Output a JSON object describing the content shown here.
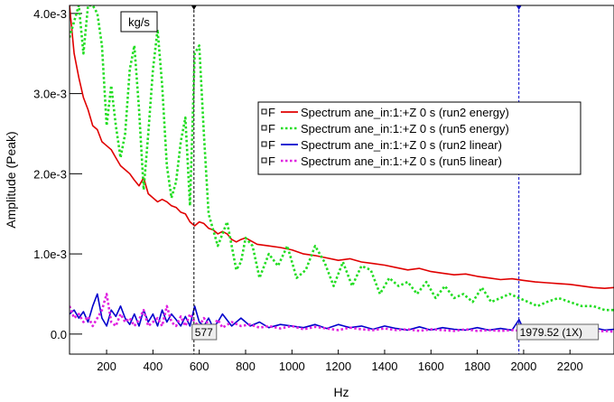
{
  "chart_data": {
    "type": "line",
    "xlabel": "Hz",
    "ylabel": "Amplitude (Peak)",
    "unit_box": "kg/s",
    "xlim": [
      40,
      2390
    ],
    "ylim": [
      -0.00025,
      0.0041
    ],
    "x_ticks": [
      200,
      400,
      600,
      800,
      1000,
      1200,
      1400,
      1600,
      1800,
      2000,
      2200
    ],
    "x_tick_labels": [
      "200",
      "400",
      "600",
      "800",
      "1000",
      "1200",
      "1400",
      "1600",
      "1800",
      "2000",
      "2200"
    ],
    "y_ticks": [
      0,
      0.001,
      0.002,
      0.003,
      0.004
    ],
    "y_tick_labels": [
      "0.0",
      "1.0e-3",
      "2.0e-3",
      "3.0e-3",
      "4.0e-3"
    ],
    "legend_prefix": "F",
    "series": [
      {
        "name": "Spectrum ane_in:1:+Z 0 s (run2 energy)",
        "color": "#e00000",
        "dash": "solid",
        "x": [
          40,
          60,
          80,
          100,
          120,
          140,
          160,
          180,
          200,
          220,
          240,
          260,
          280,
          300,
          320,
          340,
          360,
          380,
          400,
          420,
          440,
          460,
          480,
          500,
          520,
          540,
          560,
          580,
          600,
          620,
          640,
          660,
          680,
          700,
          720,
          740,
          760,
          780,
          800,
          850,
          900,
          950,
          1000,
          1050,
          1100,
          1150,
          1200,
          1250,
          1300,
          1350,
          1400,
          1450,
          1500,
          1550,
          1600,
          1650,
          1700,
          1750,
          1800,
          1850,
          1900,
          1950,
          2000,
          2050,
          2100,
          2150,
          2200,
          2250,
          2300,
          2350,
          2390
        ],
        "y": [
          0.0041,
          0.0035,
          0.0032,
          0.00295,
          0.0028,
          0.0026,
          0.00255,
          0.0024,
          0.00235,
          0.0023,
          0.0022,
          0.0021,
          0.00205,
          0.002,
          0.00192,
          0.00185,
          0.00195,
          0.00175,
          0.0017,
          0.00165,
          0.00168,
          0.00165,
          0.0016,
          0.00158,
          0.00152,
          0.0015,
          0.0014,
          0.00135,
          0.0014,
          0.00138,
          0.00132,
          0.0013,
          0.00125,
          0.00128,
          0.00125,
          0.00118,
          0.00115,
          0.00118,
          0.0012,
          0.00112,
          0.0011,
          0.00108,
          0.00105,
          0.001,
          0.00098,
          0.00095,
          0.00092,
          0.00094,
          0.0009,
          0.00088,
          0.00086,
          0.00083,
          0.0008,
          0.00082,
          0.00078,
          0.00076,
          0.00074,
          0.00075,
          0.00072,
          0.0007,
          0.00068,
          0.00069,
          0.00067,
          0.00065,
          0.00064,
          0.00063,
          0.00062,
          0.0006,
          0.00058,
          0.00057,
          0.00058
        ]
      },
      {
        "name": "Spectrum ane_in:1:+Z 0 s (run5 energy)",
        "color": "#22dd22",
        "dash": "dotted",
        "x": [
          40,
          60,
          80,
          100,
          120,
          140,
          160,
          180,
          200,
          220,
          240,
          260,
          280,
          300,
          320,
          340,
          360,
          380,
          400,
          420,
          440,
          460,
          480,
          500,
          520,
          540,
          560,
          580,
          600,
          620,
          640,
          660,
          680,
          700,
          720,
          740,
          760,
          780,
          800,
          830,
          860,
          900,
          940,
          980,
          1020,
          1060,
          1100,
          1140,
          1180,
          1220,
          1260,
          1300,
          1340,
          1380,
          1420,
          1460,
          1500,
          1540,
          1580,
          1620,
          1660,
          1700,
          1740,
          1780,
          1820,
          1860,
          1900,
          1940,
          1980,
          2020,
          2060,
          2100,
          2150,
          2200,
          2250,
          2300,
          2350,
          2390
        ],
        "y": [
          0.0037,
          0.0039,
          0.0041,
          0.0035,
          0.0041,
          0.0041,
          0.004,
          0.0036,
          0.0026,
          0.0031,
          0.0026,
          0.0022,
          0.0025,
          0.0033,
          0.0036,
          0.0028,
          0.0018,
          0.0025,
          0.0033,
          0.0038,
          0.0031,
          0.0021,
          0.0017,
          0.0019,
          0.0024,
          0.0027,
          0.0016,
          0.0035,
          0.0036,
          0.0025,
          0.0015,
          0.0013,
          0.0011,
          0.00125,
          0.0014,
          0.0011,
          0.0008,
          0.0009,
          0.0012,
          0.0011,
          0.0007,
          0.001,
          0.00085,
          0.0011,
          0.0007,
          0.0008,
          0.0011,
          0.0009,
          0.0006,
          0.0009,
          0.0006,
          0.00085,
          0.0008,
          0.0005,
          0.0007,
          0.0006,
          0.00065,
          0.0005,
          0.00065,
          0.00045,
          0.0006,
          0.00045,
          0.0005,
          0.0004,
          0.00058,
          0.0004,
          0.00045,
          0.0005,
          0.00045,
          0.0004,
          0.00035,
          0.0004,
          0.00045,
          0.0004,
          0.00035,
          0.00035,
          0.0003,
          0.0003
        ]
      },
      {
        "name": "Spectrum ane_in:1:+Z 0 s (run2 linear)",
        "color": "#0000cc",
        "dash": "solid",
        "x": [
          40,
          60,
          80,
          100,
          120,
          140,
          160,
          180,
          200,
          220,
          240,
          260,
          280,
          300,
          320,
          340,
          360,
          380,
          400,
          420,
          440,
          460,
          480,
          500,
          520,
          540,
          560,
          580,
          600,
          620,
          640,
          660,
          680,
          700,
          740,
          780,
          820,
          860,
          900,
          950,
          1000,
          1050,
          1100,
          1150,
          1200,
          1250,
          1300,
          1350,
          1400,
          1450,
          1500,
          1550,
          1600,
          1650,
          1700,
          1750,
          1800,
          1850,
          1900,
          1950,
          1980,
          2000,
          2050,
          2100,
          2150,
          2200,
          2250,
          2300,
          2350,
          2390
        ],
        "y": [
          0.00025,
          0.0003,
          0.0002,
          0.00028,
          0.00015,
          0.00035,
          0.0005,
          0.0002,
          0.0001,
          0.0003,
          0.00022,
          0.00035,
          0.0002,
          0.00012,
          0.00025,
          0.0001,
          0.0003,
          0.00015,
          0.00025,
          0.0001,
          0.0003,
          0.00015,
          0.00025,
          0.00018,
          0.0001,
          0.00022,
          0.0001,
          0.00035,
          0.00015,
          0.0001,
          0.0002,
          8e-05,
          0.00015,
          0.00025,
          0.0001,
          0.0002,
          0.0001,
          0.00015,
          8e-05,
          0.00012,
          0.0001,
          8e-05,
          0.00012,
          7e-05,
          0.00012,
          8e-05,
          0.0001,
          6e-05,
          0.0001,
          7e-05,
          5e-05,
          9e-05,
          5e-05,
          8e-05,
          6e-05,
          5e-05,
          8e-05,
          5e-05,
          7e-05,
          5e-05,
          0.00018,
          6e-05,
          0.0001,
          5e-05,
          8e-05,
          6e-05,
          5e-05,
          8e-05,
          5e-05,
          6e-05
        ]
      },
      {
        "name": "Spectrum ane_in:1:+Z 0 s (run5 linear)",
        "color": "#e020e0",
        "dash": "dotted",
        "x": [
          40,
          60,
          80,
          100,
          120,
          140,
          160,
          180,
          200,
          220,
          240,
          260,
          280,
          300,
          320,
          340,
          360,
          380,
          400,
          420,
          440,
          460,
          480,
          500,
          520,
          540,
          560,
          580,
          600,
          620,
          640,
          660,
          680,
          700,
          740,
          780,
          820,
          860,
          900,
          950,
          1000,
          1050,
          1100,
          1150,
          1200,
          1250,
          1300,
          1350,
          1400,
          1450,
          1500,
          1550,
          1600,
          1650,
          1700,
          1750,
          1800,
          1850,
          1900,
          1950,
          2000,
          2050,
          2100,
          2150,
          2200,
          2250,
          2300,
          2350,
          2390
        ],
        "y": [
          0.00035,
          0.0002,
          0.00025,
          0.00015,
          0.00022,
          0.0001,
          0.0002,
          0.0003,
          0.0005,
          0.00015,
          0.0001,
          0.00025,
          0.00015,
          0.0002,
          0.0001,
          0.00018,
          0.0003,
          0.0001,
          0.00015,
          0.0002,
          0.0001,
          0.00035,
          0.00015,
          0.0001,
          0.00022,
          0.0001,
          0.00025,
          0.00015,
          0.0001,
          0.0002,
          0.00012,
          0.0001,
          0.00018,
          8e-05,
          0.00015,
          0.0001,
          0.00012,
          8e-05,
          0.0001,
          7e-05,
          0.0001,
          6e-05,
          9e-05,
          7e-05,
          5e-05,
          8e-05,
          6e-05,
          5e-05,
          7e-05,
          5e-05,
          6e-05,
          4e-05,
          6e-05,
          5e-05,
          4e-05,
          6e-05,
          4e-05,
          5e-05,
          4e-05,
          5e-05,
          4e-05,
          5e-05,
          4e-05,
          3e-05,
          5e-05,
          4e-05,
          3e-05,
          4e-05,
          3e-05
        ]
      }
    ],
    "cursors": [
      {
        "x": 577,
        "label": "577",
        "color": "#000000"
      },
      {
        "x": 1979.52,
        "label": "1979.52 (1X)",
        "color": "#0000cc"
      }
    ]
  }
}
